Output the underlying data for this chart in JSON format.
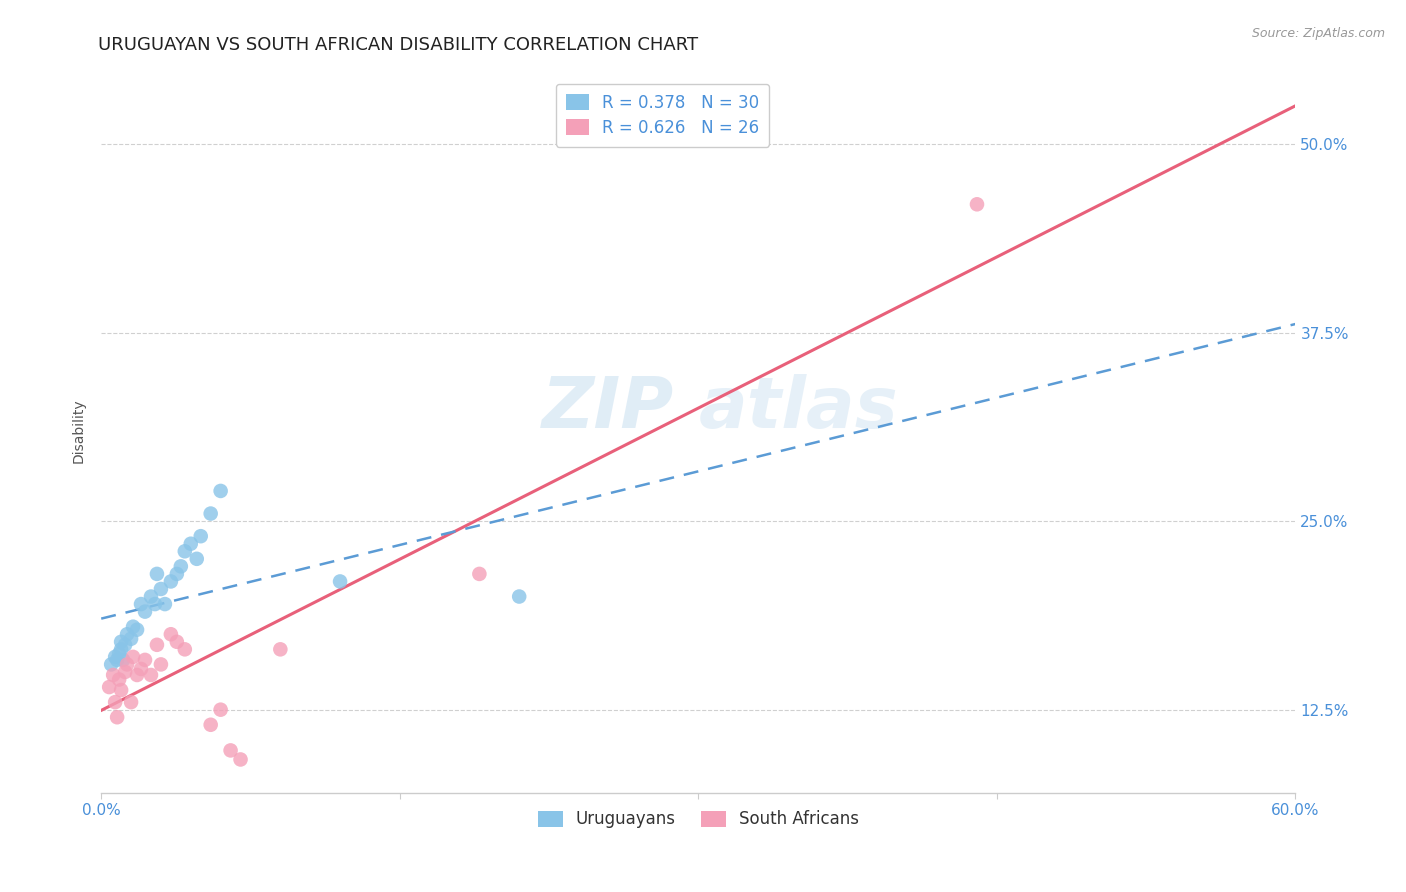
{
  "title": "URUGUAYAN VS SOUTH AFRICAN DISABILITY CORRELATION CHART",
  "source": "Source: ZipAtlas.com",
  "ylabel": "Disability",
  "xlim": [
    0.0,
    0.6
  ],
  "ylim": [
    0.07,
    0.55
  ],
  "uruguayan_R": 0.378,
  "uruguayan_N": 30,
  "sa_R": 0.626,
  "sa_N": 26,
  "uruguayan_color": "#89c4e8",
  "sa_color": "#f4a0b8",
  "regression_blue_color": "#5b9bd5",
  "regression_pink_color": "#e8607a",
  "watermark_zip": "ZIP",
  "watermark_atlas": "atlas",
  "uruguayan_x": [
    0.005,
    0.007,
    0.008,
    0.009,
    0.01,
    0.01,
    0.011,
    0.012,
    0.013,
    0.015,
    0.016,
    0.018,
    0.02,
    0.022,
    0.025,
    0.027,
    0.028,
    0.03,
    0.032,
    0.035,
    0.038,
    0.04,
    0.042,
    0.045,
    0.048,
    0.05,
    0.055,
    0.06,
    0.12,
    0.21
  ],
  "uruguayan_y": [
    0.155,
    0.16,
    0.158,
    0.162,
    0.165,
    0.17,
    0.158,
    0.168,
    0.175,
    0.172,
    0.18,
    0.178,
    0.195,
    0.19,
    0.2,
    0.195,
    0.215,
    0.205,
    0.195,
    0.21,
    0.215,
    0.22,
    0.23,
    0.235,
    0.225,
    0.24,
    0.255,
    0.27,
    0.21,
    0.2
  ],
  "sa_x": [
    0.004,
    0.006,
    0.007,
    0.008,
    0.009,
    0.01,
    0.012,
    0.013,
    0.015,
    0.016,
    0.018,
    0.02,
    0.022,
    0.025,
    0.028,
    0.03,
    0.035,
    0.038,
    0.042,
    0.055,
    0.06,
    0.065,
    0.07,
    0.09,
    0.19,
    0.44
  ],
  "sa_y": [
    0.14,
    0.148,
    0.13,
    0.12,
    0.145,
    0.138,
    0.15,
    0.155,
    0.13,
    0.16,
    0.148,
    0.152,
    0.158,
    0.148,
    0.168,
    0.155,
    0.175,
    0.17,
    0.165,
    0.115,
    0.125,
    0.098,
    0.092,
    0.165,
    0.215,
    0.46
  ],
  "ytick_vals": [
    0.125,
    0.25,
    0.375,
    0.5
  ],
  "ytick_labels": [
    "12.5%",
    "25.0%",
    "37.5%",
    "50.0%"
  ],
  "xtick_vals": [
    0.0,
    0.15,
    0.3,
    0.45,
    0.6
  ],
  "xtick_labels": [
    "0.0%",
    "",
    "",
    "",
    "60.0%"
  ],
  "title_fontsize": 13,
  "tick_fontsize": 11,
  "label_fontsize": 10,
  "legend_fontsize": 12
}
